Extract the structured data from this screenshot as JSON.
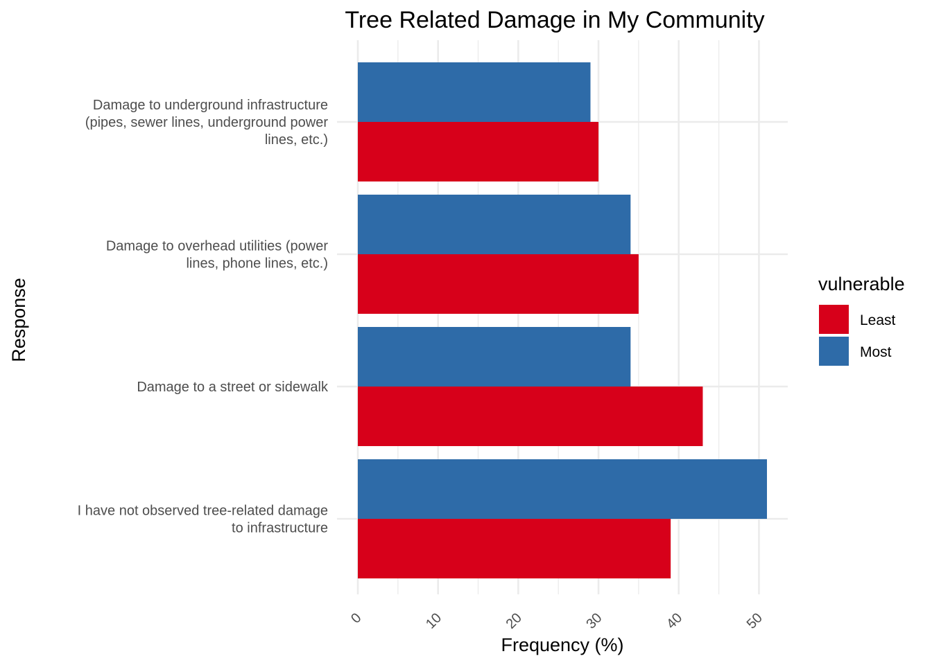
{
  "chart_data": {
    "type": "bar",
    "orientation": "horizontal",
    "title": "Tree Related Damage in My Community",
    "xlabel": "Frequency (%)",
    "ylabel": "Response",
    "xlim": [
      0,
      53.5
    ],
    "xticks": [
      0,
      10,
      20,
      30,
      40,
      50
    ],
    "grid": true,
    "categories": [
      "Damage to underground infrastructure (pipes, sewer lines, underground power lines, etc.)",
      "Damage to overhead utilities (power lines, phone lines, etc.)",
      "Damage to a street or sidewalk",
      "I have not observed tree-related damage to infrastructure"
    ],
    "category_lines": [
      [
        "Damage to underground infrastructure",
        "(pipes, sewer lines, underground power",
        "lines, etc.)"
      ],
      [
        "Damage to overhead utilities (power",
        "lines, phone lines, etc.)"
      ],
      [
        "Damage to a street or sidewalk"
      ],
      [
        "I have not observed tree-related damage",
        "to infrastructure"
      ]
    ],
    "series": [
      {
        "name": "Least",
        "color": "#d7001a",
        "values": [
          30,
          35,
          43,
          39
        ]
      },
      {
        "name": "Most",
        "color": "#2e6ba8",
        "values": [
          29,
          34,
          34,
          51
        ]
      }
    ],
    "legend": {
      "title": "vulnerable",
      "position": "right",
      "entries": [
        "Least",
        "Most"
      ]
    }
  }
}
